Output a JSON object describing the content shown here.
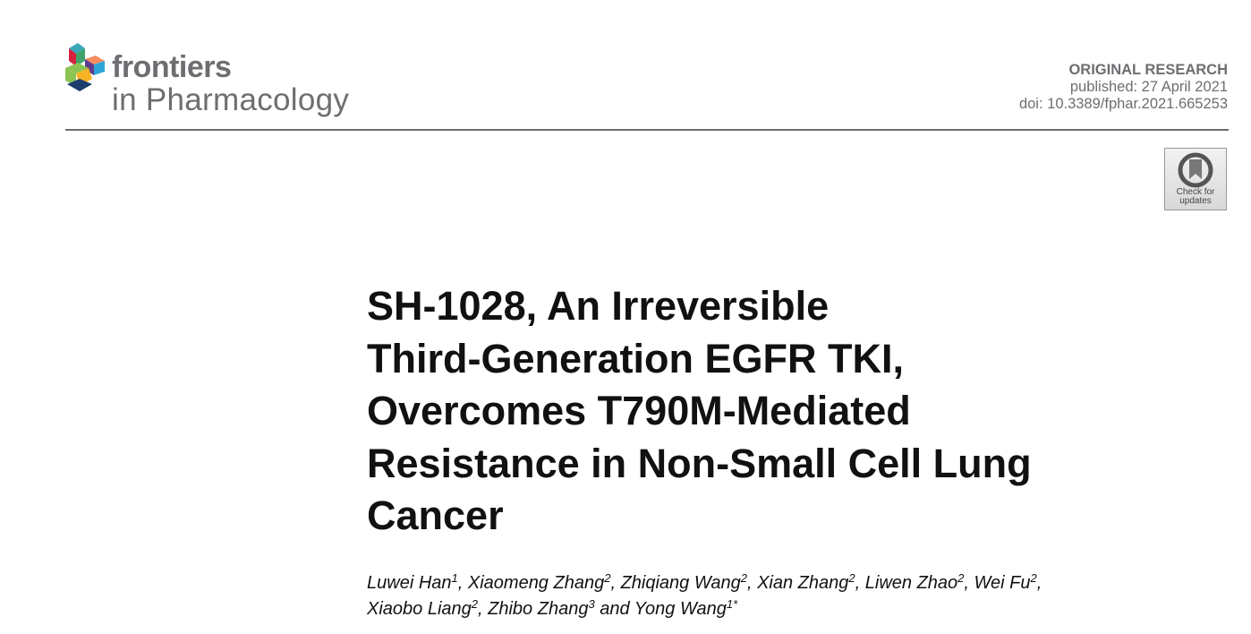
{
  "journal": {
    "brand_line1": "frontiers",
    "brand_line2": "in Pharmacology"
  },
  "meta": {
    "article_type": "ORIGINAL RESEARCH",
    "published": "published: 27 April 2021",
    "doi": "doi: 10.3389/fphar.2021.665253"
  },
  "check_updates": {
    "label_line1": "Check for",
    "label_line2": "updates",
    "icon": "bookmark-circle-icon"
  },
  "title_lines": [
    "SH-1028, An Irreversible",
    "Third-Generation EGFR TKI,",
    "Overcomes T790M-Mediated",
    "Resistance in Non-Small Cell Lung",
    "Cancer"
  ],
  "authors": [
    {
      "name": "Luwei Han",
      "aff": "1",
      "sep": ", "
    },
    {
      "name": "Xiaomeng Zhang",
      "aff": "2",
      "sep": ", "
    },
    {
      "name": "Zhiqiang Wang",
      "aff": "2",
      "sep": ", "
    },
    {
      "name": "Xian Zhang",
      "aff": "2",
      "sep": ", "
    },
    {
      "name": "Liwen Zhao",
      "aff": "2",
      "sep": ", "
    },
    {
      "name": "Wei Fu",
      "aff": "2",
      "sep": ","
    },
    {
      "name": "Xiaobo Liang",
      "aff": "2",
      "sep": ", "
    },
    {
      "name": "Zhibo Zhang",
      "aff": "3",
      "sep": " and "
    },
    {
      "name": "Yong Wang",
      "aff": "1*",
      "sep": ""
    }
  ]
}
